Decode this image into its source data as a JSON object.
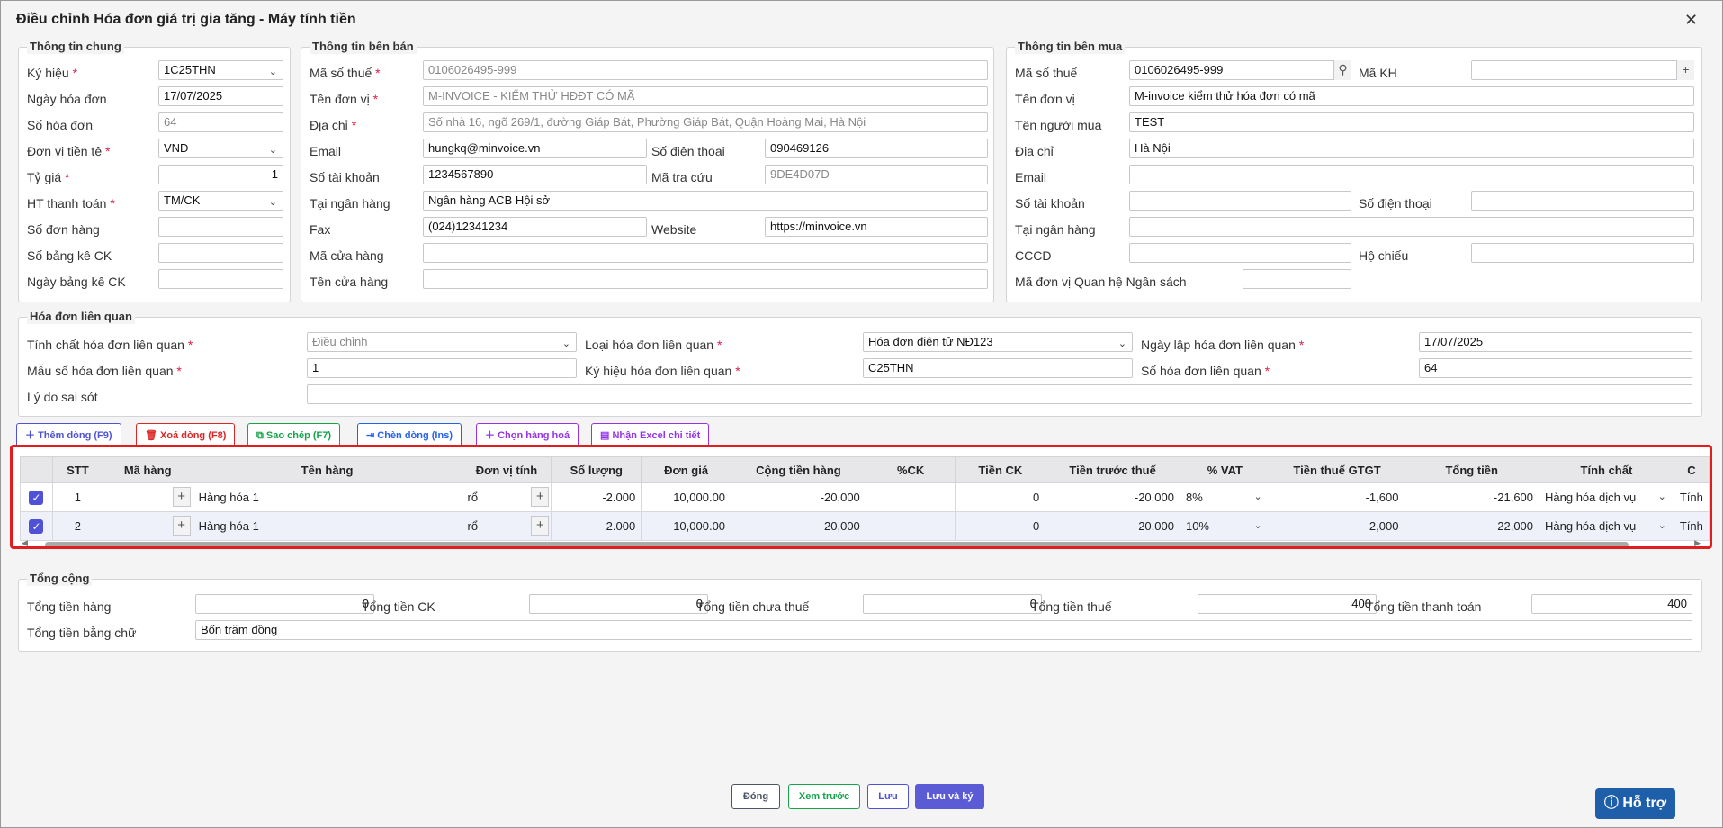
{
  "window": {
    "title": "Điều chỉnh Hóa đơn giá trị gia tăng - Máy tính tiền",
    "close": "✕"
  },
  "general": {
    "legend": "Thông tin chung",
    "rows": [
      {
        "label": "Ký hiệu",
        "value": "1C25THN"
      },
      {
        "label": "Ngày hóa đơn",
        "value": "17/07/2025"
      },
      {
        "label": "Số hóa đơn",
        "value": "64"
      },
      {
        "label": "Đơn vị tiền tệ",
        "value": "VND"
      },
      {
        "label": "Tỷ giá",
        "value": "1"
      },
      {
        "label": "HT thanh toán",
        "value": "TM/CK"
      },
      {
        "label": "Số đơn hàng",
        "value": ""
      },
      {
        "label": "Số bảng kê CK",
        "value": ""
      },
      {
        "label": "Ngày bảng kê CK",
        "value": ""
      }
    ]
  },
  "seller": {
    "legend": "Thông tin bên bán",
    "tax_code": {
      "label": "Mã số thuế",
      "value": "0106026495-999"
    },
    "name": {
      "label": "Tên đơn vị",
      "value": "M-INVOICE - KIỂM THỬ HĐĐT CÓ MÃ"
    },
    "address": {
      "label": "Địa chỉ",
      "value": "Số nhà 16, ngõ 269/1, đường Giáp Bát, Phường Giáp Bát, Quận Hoàng Mai, Hà Nội"
    },
    "email": {
      "label": "Email",
      "value": "hungkq@minvoice.vn"
    },
    "phone": {
      "label": "Số điện thoại",
      "value": "090469126"
    },
    "account": {
      "label": "Số tài khoản",
      "value": "1234567890"
    },
    "lookup": {
      "label": "Mã tra cứu",
      "value": "9DE4D07D"
    },
    "bank": {
      "label": "Tại ngân hàng",
      "value": "Ngân hàng ACB Hội sở"
    },
    "fax": {
      "label": "Fax",
      "value": "(024)12341234"
    },
    "website": {
      "label": "Website",
      "value": "https://minvoice.vn"
    },
    "store_code": {
      "label": "Mã cửa hàng",
      "value": ""
    },
    "store_name": {
      "label": "Tên cửa hàng",
      "value": ""
    }
  },
  "buyer": {
    "legend": "Thông tin bên mua",
    "tax_code": {
      "label": "Mã số thuế",
      "value": "0106026495-999"
    },
    "customer_code": {
      "label": "Mã KH",
      "value": ""
    },
    "name": {
      "label": "Tên đơn vị",
      "value": "M-invoice kiểm thử hóa đơn có mã"
    },
    "buyer_name": {
      "label": "Tên người mua",
      "value": "TEST"
    },
    "address": {
      "label": "Địa chỉ",
      "value": "Hà Nội"
    },
    "email": {
      "label": "Email",
      "value": ""
    },
    "account": {
      "label": "Số tài khoản",
      "value": ""
    },
    "phone": {
      "label": "Số điện thoại",
      "value": ""
    },
    "bank": {
      "label": "Tại ngân hàng",
      "value": ""
    },
    "cccd": {
      "label": "CCCD",
      "value": ""
    },
    "passport": {
      "label": "Hộ chiếu",
      "value": ""
    },
    "budget_code": {
      "label": "Mã đơn vị Quan hệ Ngân sách",
      "value": ""
    }
  },
  "related": {
    "legend": "Hóa đơn liên quan",
    "nature": {
      "label": "Tính chất hóa đơn liên quan",
      "value": "Điều chỉnh"
    },
    "type": {
      "label": "Loại hóa đơn liên quan",
      "value": "Hóa đơn điện tử NĐ123"
    },
    "date": {
      "label": "Ngày lập hóa đơn liên quan",
      "value": "17/07/2025"
    },
    "template": {
      "label": "Mẫu số hóa đơn liên quan",
      "value": "1"
    },
    "symbol": {
      "label": "Ký hiệu hóa đơn liên quan",
      "value": "C25THN"
    },
    "number": {
      "label": "Số hóa đơn liên quan",
      "value": "64"
    },
    "reason": {
      "label": "Lý do sai sót",
      "value": ""
    }
  },
  "toolbar": [
    {
      "label": "Thêm dòng (F9)",
      "icon": "＋",
      "color": "#4f52d6"
    },
    {
      "label": "Xoá dòng (F8)",
      "icon": "🗑",
      "color": "#dc2626"
    },
    {
      "label": "Sao chép (F7)",
      "icon": "⧉",
      "color": "#16a34a"
    },
    {
      "label": "Chèn dòng (Ins)",
      "icon": "⇥",
      "color": "#2563eb"
    },
    {
      "label": "Chọn hàng hoá",
      "icon": "＋",
      "color": "#9333ea"
    },
    {
      "label": "Nhận Excel chi tiết",
      "icon": "▤",
      "color": "#9333ea"
    }
  ],
  "grid": {
    "headers": [
      "",
      "STT",
      "Mã hàng",
      "Tên hàng",
      "Đơn vị tính",
      "Số lượng",
      "Đơn giá",
      "Cộng tiền hàng",
      "%CK",
      "Tiền CK",
      "Tiền trước thuế",
      "% VAT",
      "Tiền thuế GTGT",
      "Tổng tiền",
      "Tính chất",
      "C"
    ],
    "rows": [
      {
        "stt": "1",
        "code": "",
        "name": "Hàng hóa 1",
        "unit": "rổ",
        "qty": "-2.000",
        "price": "10,000.00",
        "amount": "-20,000",
        "ck_pct": "",
        "ck": "0",
        "pre_tax": "-20,000",
        "vat": "8%",
        "vat_amount": "-1,600",
        "total": "-21,600",
        "nature": "Hàng hóa dịch vụ",
        "extra": "Tính"
      },
      {
        "stt": "2",
        "code": "",
        "name": "Hàng hóa 1",
        "unit": "rổ",
        "qty": "2.000",
        "price": "10,000.00",
        "amount": "20,000",
        "ck_pct": "",
        "ck": "0",
        "pre_tax": "20,000",
        "vat": "10%",
        "vat_amount": "2,000",
        "total": "22,000",
        "nature": "Hàng hóa dịch vụ",
        "extra": "Tính"
      }
    ]
  },
  "totals": {
    "legend": "Tổng cộng",
    "goods": {
      "label": "Tổng tiền hàng",
      "value": "0"
    },
    "ck": {
      "label": "Tổng tiền CK",
      "value": "0"
    },
    "pre_tax": {
      "label": "Tổng tiền chưa thuế",
      "value": "0"
    },
    "tax": {
      "label": "Tổng tiền thuế",
      "value": "400"
    },
    "pay": {
      "label": "Tổng tiền thanh toán",
      "value": "400"
    },
    "words": {
      "label": "Tổng tiền bằng chữ",
      "value": "Bốn trăm đồng"
    }
  },
  "footer": {
    "close": "Đóng",
    "preview": "Xem trước",
    "save": "Lưu",
    "save_sign": "Lưu và ký",
    "help": "Hỗ trợ"
  }
}
